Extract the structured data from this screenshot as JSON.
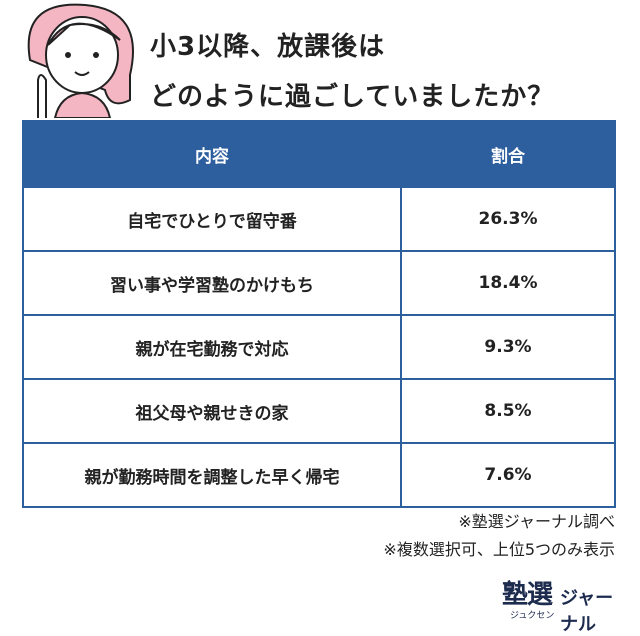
{
  "header": {
    "title_lines": [
      "小3以降、放課後は",
      "どのように過ごしていましたか？"
    ]
  },
  "table": {
    "columns": [
      "内容",
      "割合"
    ],
    "rows": [
      [
        "自宅でひとりで留守番",
        "26.3%"
      ],
      [
        "習い事や学習塾のかけもち",
        "18.4%"
      ],
      [
        "親が在宅勤務で対応",
        "9.3%"
      ],
      [
        "祖父母や親せきの家",
        "8.5%"
      ],
      [
        "親が勤務時間を調整した早く帰宅",
        "7.6%"
      ]
    ]
  },
  "notes": [
    "※塾選ジャーナル調べ",
    "※複数選択可、上位5つのみ表示"
  ],
  "logo": {
    "main": "塾選",
    "sub": "ジュクセン",
    "suffix": "ジャーナル"
  }
}
